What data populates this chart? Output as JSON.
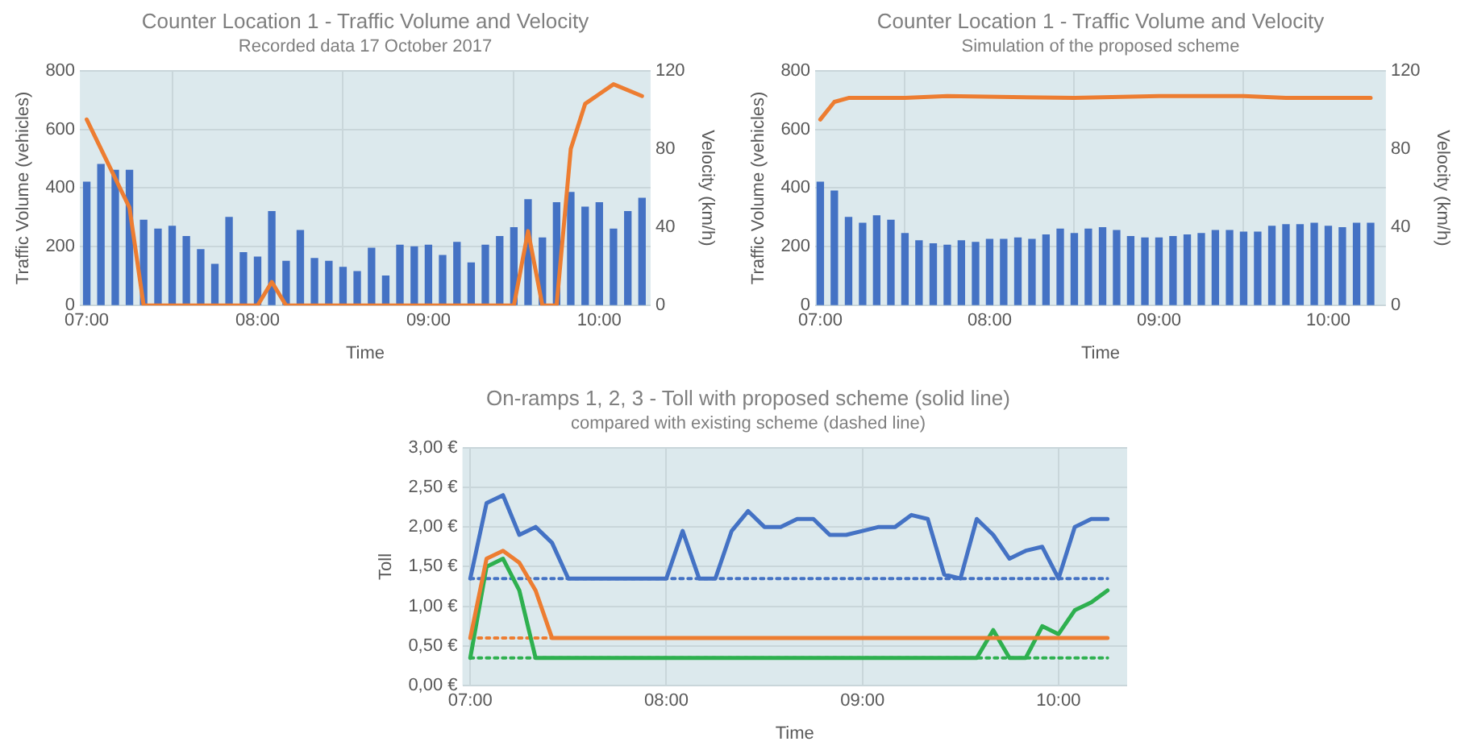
{
  "chart_data": [
    {
      "type": "bar",
      "title": "Counter Location 1 - Traffic Volume and Velocity",
      "subtitle": "Recorded data 17 October 2017",
      "xlabel": "Time",
      "ylabel": "Traffic Volume (vehicles)",
      "y2label": "Velocity (km/h)",
      "x": [
        7,
        7.083,
        7.167,
        7.25,
        7.333,
        7.417,
        7.5,
        7.583,
        7.667,
        7.75,
        7.833,
        7.917,
        8,
        8.083,
        8.167,
        8.25,
        8.333,
        8.417,
        8.5,
        8.583,
        8.667,
        8.75,
        8.833,
        8.917,
        9,
        9.083,
        9.167,
        9.25,
        9.333,
        9.417,
        9.5,
        9.583,
        9.667,
        9.75,
        9.833,
        9.917,
        10,
        10.083,
        10.167,
        10.25
      ],
      "series": [
        {
          "color": "#4472c4",
          "values": [
            420,
            480,
            460,
            460,
            290,
            260,
            270,
            235,
            190,
            140,
            300,
            180,
            165,
            320,
            150,
            255,
            160,
            150,
            130,
            115,
            195,
            100,
            205,
            200,
            205,
            170,
            215,
            145,
            205,
            235,
            265,
            360,
            230,
            350,
            385,
            335,
            350,
            260,
            320,
            365
          ]
        },
        {
          "type": "line",
          "axis": "y2",
          "color": "#ed7d31",
          "x": [
            7,
            7.25,
            7.333,
            8,
            8.083,
            8.167,
            9.5,
            9.583,
            9.667,
            9.75,
            9.833,
            9.917,
            10,
            10.083,
            10.25
          ],
          "values": [
            95,
            50,
            0,
            0,
            12,
            0,
            0,
            38,
            0,
            0,
            80,
            103,
            108,
            113,
            107
          ]
        }
      ],
      "xlim": [
        6.96,
        10.3
      ],
      "xticks": [
        {
          "value": 7,
          "label": "07:00"
        },
        {
          "value": 8,
          "label": "08:00"
        },
        {
          "value": 9,
          "label": "09:00"
        },
        {
          "value": 10,
          "label": "10:00"
        }
      ],
      "ylim": [
        0,
        800
      ],
      "yticks": [
        0,
        200,
        400,
        600,
        800
      ],
      "y2lim": [
        0,
        120
      ],
      "y2ticks": [
        0,
        40,
        80,
        120
      ],
      "grid": true,
      "marker": "none"
    },
    {
      "type": "bar",
      "title": "Counter Location 1 - Traffic Volume and Velocity",
      "subtitle": "Simulation of the proposed scheme",
      "xlabel": "Time",
      "ylabel": "Traffic Volume (vehicles)",
      "y2label": "Velocity (km/h)",
      "x": [
        7,
        7.083,
        7.167,
        7.25,
        7.333,
        7.417,
        7.5,
        7.583,
        7.667,
        7.75,
        7.833,
        7.917,
        8,
        8.083,
        8.167,
        8.25,
        8.333,
        8.417,
        8.5,
        8.583,
        8.667,
        8.75,
        8.833,
        8.917,
        9,
        9.083,
        9.167,
        9.25,
        9.333,
        9.417,
        9.5,
        9.583,
        9.667,
        9.75,
        9.833,
        9.917,
        10,
        10.083,
        10.167,
        10.25
      ],
      "series": [
        {
          "color": "#4472c4",
          "values": [
            420,
            390,
            300,
            280,
            305,
            290,
            245,
            220,
            210,
            205,
            220,
            215,
            225,
            225,
            230,
            225,
            240,
            260,
            245,
            260,
            265,
            255,
            235,
            230,
            230,
            235,
            240,
            245,
            255,
            255,
            250,
            250,
            270,
            275,
            275,
            280,
            270,
            265,
            280,
            280
          ]
        },
        {
          "type": "line",
          "axis": "y2",
          "color": "#ed7d31",
          "x": [
            7,
            7.083,
            7.167,
            7.5,
            7.75,
            8.5,
            9,
            9.5,
            9.75,
            10.25
          ],
          "values": [
            95,
            104,
            106,
            106,
            107,
            106,
            107,
            107,
            106,
            106
          ]
        }
      ],
      "xlim": [
        6.97,
        10.34
      ],
      "xticks": [
        {
          "value": 7,
          "label": "07:00"
        },
        {
          "value": 8,
          "label": "08:00"
        },
        {
          "value": 9,
          "label": "09:00"
        },
        {
          "value": 10,
          "label": "10:00"
        }
      ],
      "ylim": [
        0,
        800
      ],
      "yticks": [
        0,
        200,
        400,
        600,
        800
      ],
      "y2lim": [
        0,
        120
      ],
      "y2ticks": [
        0,
        40,
        80,
        120
      ],
      "grid": true,
      "marker": "none"
    },
    {
      "type": "line",
      "title": "On-ramps 1, 2, 3 - Toll with proposed scheme (solid line)",
      "subtitle": "compared with existing scheme (dashed line)",
      "xlabel": "Time",
      "ylabel": "Toll",
      "x": [
        7,
        7.083,
        7.167,
        7.25,
        7.333,
        7.417,
        7.5,
        7.583,
        7.667,
        7.75,
        7.833,
        7.917,
        8,
        8.083,
        8.167,
        8.25,
        8.333,
        8.417,
        8.5,
        8.583,
        8.667,
        8.75,
        8.833,
        8.917,
        9,
        9.083,
        9.167,
        9.25,
        9.333,
        9.417,
        9.5,
        9.583,
        9.667,
        9.75,
        9.833,
        9.917,
        10,
        10.083,
        10.167,
        10.25
      ],
      "series": [
        {
          "color": "#4472c4",
          "line_style": "solid",
          "values": [
            1.35,
            2.3,
            2.4,
            1.9,
            2,
            1.8,
            1.35,
            1.35,
            1.35,
            1.35,
            1.35,
            1.35,
            1.35,
            1.95,
            1.35,
            1.35,
            1.95,
            2.2,
            2,
            2,
            2.1,
            2.1,
            1.9,
            1.9,
            1.95,
            2,
            2,
            2.15,
            2.1,
            1.4,
            1.35,
            2.1,
            1.9,
            1.6,
            1.7,
            1.75,
            1.35,
            2,
            2.1,
            2.1
          ]
        },
        {
          "color": "#ed7d31",
          "line_style": "solid",
          "values": [
            0.6,
            1.6,
            1.7,
            1.55,
            1.2,
            0.6,
            0.6,
            0.6,
            0.6,
            0.6,
            0.6,
            0.6,
            0.6,
            0.6,
            0.6,
            0.6,
            0.6,
            0.6,
            0.6,
            0.6,
            0.6,
            0.6,
            0.6,
            0.6,
            0.6,
            0.6,
            0.6,
            0.6,
            0.6,
            0.6,
            0.6,
            0.6,
            0.6,
            0.6,
            0.6,
            0.6,
            0.6,
            0.6,
            0.6,
            0.6
          ]
        },
        {
          "color": "#2eb04f",
          "line_style": "solid",
          "values": [
            0.35,
            1.5,
            1.6,
            1.2,
            0.35,
            0.35,
            0.35,
            0.35,
            0.35,
            0.35,
            0.35,
            0.35,
            0.35,
            0.35,
            0.35,
            0.35,
            0.35,
            0.35,
            0.35,
            0.35,
            0.35,
            0.35,
            0.35,
            0.35,
            0.35,
            0.35,
            0.35,
            0.35,
            0.35,
            0.35,
            0.35,
            0.35,
            0.7,
            0.35,
            0.35,
            0.75,
            0.65,
            0.95,
            1.05,
            1.2
          ]
        },
        {
          "color": "#4472c4",
          "line_style": "dotted",
          "x": [
            7,
            10.25
          ],
          "values": [
            1.35,
            1.35
          ]
        },
        {
          "color": "#ed7d31",
          "line_style": "dotted",
          "x": [
            7,
            7.417
          ],
          "values": [
            0.6,
            0.6
          ]
        },
        {
          "color": "#2eb04f",
          "line_style": "dotted",
          "x": [
            7,
            10.25
          ],
          "values": [
            0.35,
            0.35
          ]
        }
      ],
      "xlim": [
        6.96,
        10.35
      ],
      "xticks": [
        {
          "value": 7,
          "label": "07:00"
        },
        {
          "value": 8,
          "label": "08:00"
        },
        {
          "value": 9,
          "label": "09:00"
        },
        {
          "value": 10,
          "label": "10:00"
        }
      ],
      "ylim": [
        0,
        3
      ],
      "yticks": [
        {
          "value": 0,
          "label": "0,00 €"
        },
        {
          "value": 0.5,
          "label": "0,50 €"
        },
        {
          "value": 1,
          "label": "1,00 €"
        },
        {
          "value": 1.5,
          "label": "1,50 €"
        },
        {
          "value": 2,
          "label": "2,00 €"
        },
        {
          "value": 2.5,
          "label": "2,50 €"
        },
        {
          "value": 3,
          "label": "3,00 €"
        }
      ],
      "grid": true,
      "marker": "none"
    }
  ]
}
